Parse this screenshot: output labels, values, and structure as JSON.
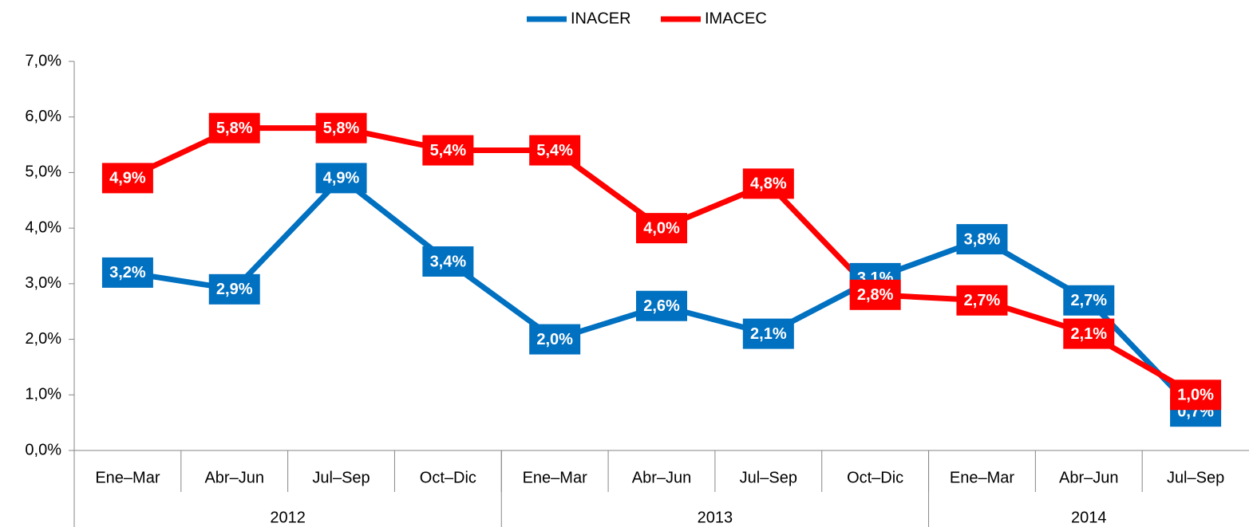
{
  "chart_data": {
    "type": "line",
    "categories": [
      "Ene–Mar",
      "Abr–Jun",
      "Jul–Sep",
      "Oct–Dic",
      "Ene–Mar",
      "Abr–Jun",
      "Jul–Sep",
      "Oct–Dic",
      "Ene–Mar",
      "Abr–Jun",
      "Jul–Sep"
    ],
    "groups": [
      {
        "name": "2012",
        "count": 4
      },
      {
        "name": "2013",
        "count": 4
      },
      {
        "name": "2014",
        "count": 3
      }
    ],
    "series": [
      {
        "name": "INACER",
        "color": "#0070c0",
        "values": [
          3.2,
          2.9,
          4.9,
          3.4,
          2.0,
          2.6,
          2.1,
          3.1,
          3.8,
          2.7,
          0.7
        ],
        "value_labels": [
          "3,2%",
          "2,9%",
          "4,9%",
          "3,4%",
          "2,0%",
          "2,6%",
          "2,1%",
          "3,1%",
          "3,8%",
          "2,7%",
          "0,7%"
        ]
      },
      {
        "name": "IMACEC",
        "color": "#ff0000",
        "values": [
          4.9,
          5.8,
          5.8,
          5.4,
          5.4,
          4.0,
          4.8,
          2.8,
          2.7,
          2.1,
          1.0
        ],
        "value_labels": [
          "4,9%",
          "5,8%",
          "5,8%",
          "5,4%",
          "5,4%",
          "4,0%",
          "4,8%",
          "2,8%",
          "2,7%",
          "2,1%",
          "1,0%"
        ]
      }
    ],
    "ylim": [
      0,
      7
    ],
    "yticks": [
      {
        "value": 0,
        "label": "0,0%"
      },
      {
        "value": 1,
        "label": "1,0%"
      },
      {
        "value": 2,
        "label": "2,0%"
      },
      {
        "value": 3,
        "label": "3,0%"
      },
      {
        "value": 4,
        "label": "4,0%"
      },
      {
        "value": 5,
        "label": "5,0%"
      },
      {
        "value": 6,
        "label": "6,0%"
      },
      {
        "value": 7,
        "label": "7,0%"
      }
    ],
    "legend": "top"
  }
}
